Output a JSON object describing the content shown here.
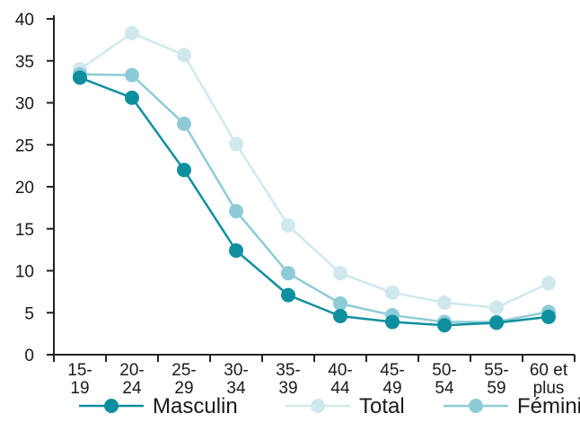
{
  "chart_data": {
    "type": "line",
    "title": "",
    "xlabel": "",
    "ylabel": "",
    "categories": [
      [
        "15-",
        "19"
      ],
      [
        "20-",
        "24"
      ],
      [
        "25-",
        "29"
      ],
      [
        "30-",
        "34"
      ],
      [
        "35-",
        "39"
      ],
      [
        "40-",
        "44"
      ],
      [
        "45-",
        "49"
      ],
      [
        "50-",
        "54"
      ],
      [
        "55-",
        "59"
      ],
      [
        "60 et",
        "plus"
      ]
    ],
    "ylim": [
      0,
      40
    ],
    "yticks": [
      0,
      5,
      10,
      15,
      20,
      25,
      30,
      35,
      40
    ],
    "grid": false,
    "legend_position": "bottom",
    "series": [
      {
        "name": "Total",
        "color": "#cfe8ee",
        "values": [
          34.0,
          38.3,
          35.7,
          25.1,
          15.4,
          9.7,
          7.4,
          6.2,
          5.6,
          8.5
        ]
      },
      {
        "name": "Féminin",
        "color": "#8ecbd6",
        "values": [
          33.4,
          33.3,
          27.5,
          17.1,
          9.7,
          6.1,
          4.7,
          3.9,
          3.9,
          5.1
        ]
      },
      {
        "name": "Masculin",
        "color": "#0e8f9e",
        "values": [
          33.0,
          30.6,
          22.0,
          12.4,
          7.1,
          4.6,
          3.9,
          3.5,
          3.8,
          4.5
        ]
      }
    ],
    "legend_order": [
      "Masculin",
      "Total",
      "Féminin"
    ]
  }
}
